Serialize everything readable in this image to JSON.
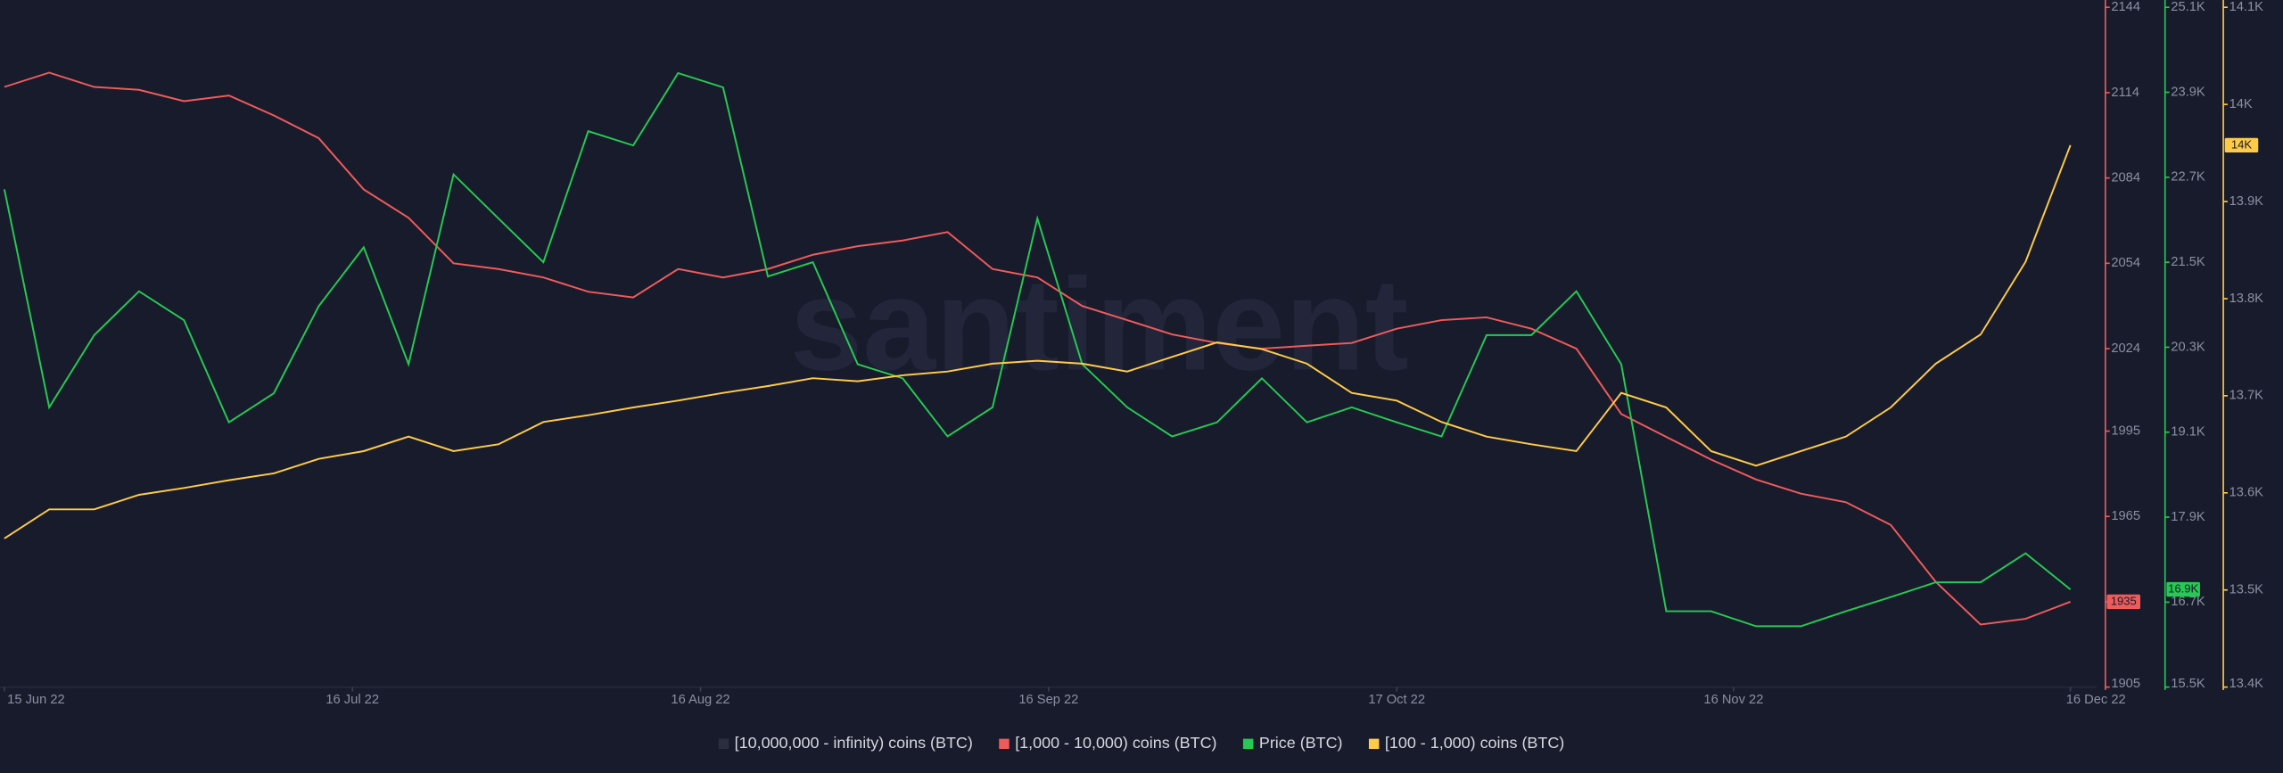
{
  "chart_data": {
    "type": "line",
    "watermark": "santiment",
    "x": [
      "2022-06-15",
      "2022-06-19",
      "2022-06-23",
      "2022-06-27",
      "2022-07-01",
      "2022-07-05",
      "2022-07-09",
      "2022-07-13",
      "2022-07-17",
      "2022-07-21",
      "2022-07-25",
      "2022-07-29",
      "2022-08-02",
      "2022-08-06",
      "2022-08-10",
      "2022-08-14",
      "2022-08-18",
      "2022-08-22",
      "2022-08-26",
      "2022-08-30",
      "2022-09-03",
      "2022-09-07",
      "2022-09-11",
      "2022-09-15",
      "2022-09-19",
      "2022-09-23",
      "2022-09-27",
      "2022-10-01",
      "2022-10-05",
      "2022-10-09",
      "2022-10-13",
      "2022-10-17",
      "2022-10-21",
      "2022-10-25",
      "2022-10-29",
      "2022-11-02",
      "2022-11-06",
      "2022-11-10",
      "2022-11-14",
      "2022-11-18",
      "2022-11-22",
      "2022-11-26",
      "2022-11-30",
      "2022-12-04",
      "2022-12-08",
      "2022-12-12",
      "2022-12-16"
    ],
    "xlim": [
      "2022-06-15",
      "2022-12-16"
    ],
    "xticks": [
      {
        "value": "2022-06-15",
        "label": "15 Jun 22"
      },
      {
        "value": "2022-07-16",
        "label": "16 Jul 22"
      },
      {
        "value": "2022-08-16",
        "label": "16 Aug 22"
      },
      {
        "value": "2022-09-16",
        "label": "16 Sep 22"
      },
      {
        "value": "2022-10-17",
        "label": "17 Oct 22"
      },
      {
        "value": "2022-11-16",
        "label": "16 Nov 22"
      },
      {
        "value": "2022-12-16",
        "label": "16 Dec 22"
      }
    ],
    "ylim": [
      1905,
      2144
    ],
    "yticks": [
      1905,
      1935,
      1965,
      1995,
      2024,
      2054,
      2084,
      2114,
      2144
    ],
    "y2lim": [
      15500,
      25100
    ],
    "y2ticks": [
      {
        "value": 15500,
        "label": "15.5K"
      },
      {
        "value": 16700,
        "label": "16.7K"
      },
      {
        "value": 17900,
        "label": "17.9K"
      },
      {
        "value": 19100,
        "label": "19.1K"
      },
      {
        "value": 20300,
        "label": "20.3K"
      },
      {
        "value": 21500,
        "label": "21.5K"
      },
      {
        "value": 22700,
        "label": "22.7K"
      },
      {
        "value": 23900,
        "label": "23.9K"
      },
      {
        "value": 25100,
        "label": "25.1K"
      }
    ],
    "y3lim": [
      13400,
      14100
    ],
    "y3ticks": [
      {
        "value": 13400,
        "label": "13.4K"
      },
      {
        "value": 13500,
        "label": "13.5K"
      },
      {
        "value": 13600,
        "label": "13.6K"
      },
      {
        "value": 13700,
        "label": "13.7K"
      },
      {
        "value": 13800,
        "label": "13.8K"
      },
      {
        "value": 13900,
        "label": "13.9K"
      },
      {
        "value": 14000,
        "label": "14K"
      },
      {
        "value": 14100,
        "label": "14.1K"
      }
    ],
    "series": [
      {
        "name": "[10,000,000 - infinity) coins (BTC)",
        "color": "#2b2e3f"
      },
      {
        "name": "[1,000 - 10,000) coins (BTC)",
        "color": "#ef5b5b",
        "axis": "y",
        "values": [
          2116,
          2121,
          2116,
          2115,
          2111,
          2113,
          2106,
          2098,
          2080,
          2070,
          2054,
          2052,
          2049,
          2044,
          2042,
          2052,
          2049,
          2052,
          2057,
          2060,
          2062,
          2065,
          2052,
          2049,
          2039,
          2034,
          2029,
          2026,
          2024,
          2025,
          2026,
          2031,
          2034,
          2035,
          2031,
          2024,
          2001,
          1993,
          1985,
          1978,
          1973,
          1970,
          1962,
          1942,
          1927,
          1929,
          1935
        ],
        "last_label": "1935"
      },
      {
        "name": "Price (BTC)",
        "color": "#26c953",
        "axis": "y2",
        "values": [
          22530,
          19450,
          20470,
          21090,
          20680,
          19240,
          19650,
          20880,
          21710,
          20060,
          22740,
          22120,
          21500,
          23350,
          23150,
          24170,
          23970,
          21300,
          21500,
          20060,
          19860,
          19040,
          19450,
          22120,
          20060,
          19450,
          19040,
          19240,
          19860,
          19240,
          19450,
          19240,
          19040,
          20470,
          20470,
          21090,
          20060,
          16570,
          16570,
          16360,
          16360,
          16570,
          16770,
          16980,
          16980,
          17390,
          16880
        ],
        "last_label": "16.9K"
      },
      {
        "name": "[100 - 1,000) coins (BTC)",
        "color": "#ffcb47",
        "axis": "y3",
        "values": [
          13553,
          13583,
          13583,
          13598,
          13605,
          13613,
          13620,
          13635,
          13643,
          13658,
          13643,
          13650,
          13673,
          13680,
          13688,
          13695,
          13703,
          13710,
          13718,
          13715,
          13721,
          13725,
          13733,
          13736,
          13733,
          13725,
          13740,
          13755,
          13748,
          13733,
          13703,
          13695,
          13673,
          13658,
          13650,
          13643,
          13703,
          13688,
          13643,
          13628,
          13643,
          13658,
          13688,
          13733,
          13763,
          13838,
          13958
        ],
        "last_label": "14K"
      }
    ]
  }
}
